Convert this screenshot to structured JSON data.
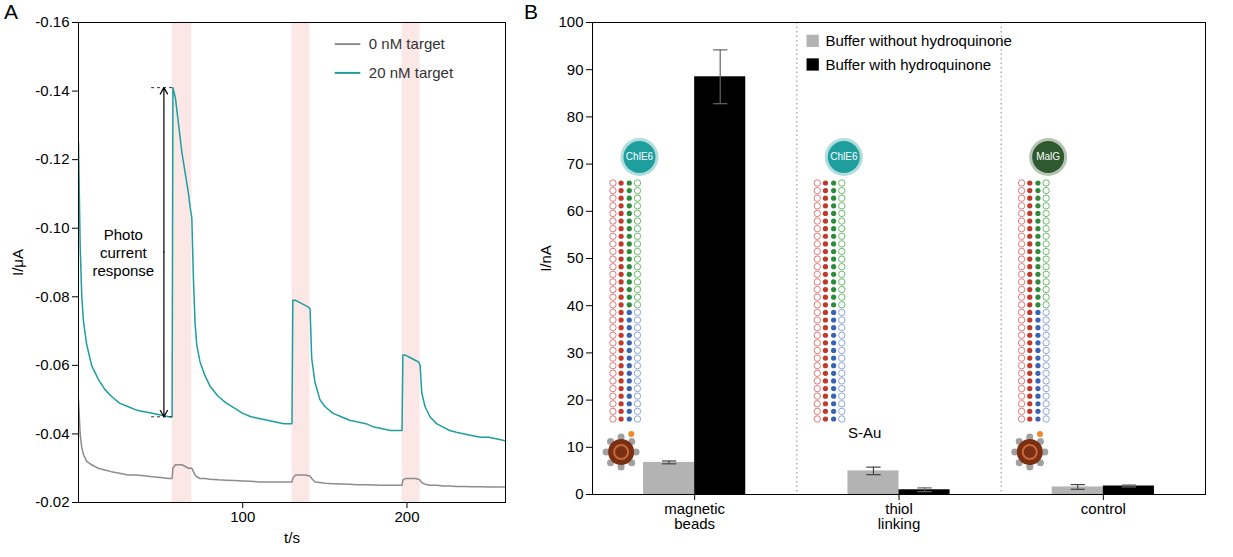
{
  "chart_data": [
    {
      "panel": "A",
      "type": "line",
      "x_label": "t/s",
      "y_label": "I/μA",
      "x": [
        0,
        1,
        2,
        3,
        5,
        8,
        12,
        16,
        20,
        25,
        30,
        35,
        40,
        45,
        50,
        55,
        57,
        57.5,
        59,
        61,
        63,
        65,
        67,
        68,
        69,
        70,
        71,
        72,
        74,
        77,
        80,
        85,
        90,
        95,
        100,
        105,
        110,
        115,
        120,
        125,
        129,
        130,
        130.5,
        132,
        134,
        136,
        138,
        140,
        141,
        142,
        144,
        147,
        150,
        155,
        160,
        165,
        170,
        175,
        180,
        185,
        190,
        195,
        196,
        197,
        197.5,
        199,
        201,
        203,
        205,
        207,
        208,
        209,
        211,
        214,
        218,
        222,
        226,
        230,
        235,
        240,
        245,
        250,
        255,
        260
      ],
      "series": [
        {
          "name": "0 nM target",
          "color": "#8c8c8c",
          "values": [
            -0.05,
            -0.04,
            -0.036,
            -0.034,
            -0.032,
            -0.031,
            -0.03,
            -0.0295,
            -0.029,
            -0.0285,
            -0.028,
            -0.028,
            -0.0278,
            -0.0275,
            -0.0273,
            -0.027,
            -0.027,
            -0.03,
            -0.031,
            -0.031,
            -0.031,
            -0.0305,
            -0.03,
            -0.03,
            -0.03,
            -0.029,
            -0.028,
            -0.0275,
            -0.027,
            -0.027,
            -0.0268,
            -0.0266,
            -0.0265,
            -0.0264,
            -0.0263,
            -0.0262,
            -0.026,
            -0.026,
            -0.026,
            -0.026,
            -0.026,
            -0.026,
            -0.027,
            -0.028,
            -0.028,
            -0.028,
            -0.028,
            -0.0278,
            -0.0277,
            -0.027,
            -0.026,
            -0.0258,
            -0.0256,
            -0.0255,
            -0.0254,
            -0.0253,
            -0.0252,
            -0.0252,
            -0.0251,
            -0.025,
            -0.025,
            -0.025,
            -0.025,
            -0.025,
            -0.0265,
            -0.027,
            -0.027,
            -0.027,
            -0.027,
            -0.0268,
            -0.0265,
            -0.0258,
            -0.0253,
            -0.025,
            -0.025,
            -0.0248,
            -0.0248,
            -0.0247,
            -0.0247,
            -0.0246,
            -0.0246,
            -0.0245,
            -0.0245,
            -0.0245
          ]
        },
        {
          "name": "20 nM target",
          "color": "#1f9e9e",
          "values": [
            -0.125,
            -0.095,
            -0.08,
            -0.073,
            -0.066,
            -0.06,
            -0.056,
            -0.053,
            -0.051,
            -0.049,
            -0.048,
            -0.047,
            -0.0465,
            -0.046,
            -0.0455,
            -0.045,
            -0.045,
            -0.141,
            -0.138,
            -0.13,
            -0.122,
            -0.116,
            -0.11,
            -0.106,
            -0.103,
            -0.085,
            -0.072,
            -0.066,
            -0.061,
            -0.057,
            -0.054,
            -0.051,
            -0.049,
            -0.0475,
            -0.046,
            -0.045,
            -0.0445,
            -0.044,
            -0.0435,
            -0.043,
            -0.043,
            -0.043,
            -0.079,
            -0.079,
            -0.0785,
            -0.078,
            -0.0775,
            -0.077,
            -0.0765,
            -0.062,
            -0.055,
            -0.05,
            -0.048,
            -0.046,
            -0.045,
            -0.044,
            -0.0435,
            -0.043,
            -0.042,
            -0.0415,
            -0.041,
            -0.041,
            -0.041,
            -0.041,
            -0.063,
            -0.063,
            -0.0625,
            -0.062,
            -0.0615,
            -0.061,
            -0.06,
            -0.052,
            -0.048,
            -0.045,
            -0.043,
            -0.042,
            -0.041,
            -0.0405,
            -0.04,
            -0.0395,
            -0.039,
            -0.039,
            -0.0385,
            -0.038
          ]
        }
      ],
      "xlim": [
        0,
        260
      ],
      "xticks": [
        100,
        200
      ],
      "ylim": [
        -0.02,
        -0.16
      ],
      "yticks": [
        -0.16,
        -0.14,
        -0.12,
        {
          "value": -0.1,
          "label": "-0.10"
        },
        -0.08,
        -0.06,
        -0.04,
        -0.02
      ],
      "light_intervals": [
        [
          57,
          69
        ],
        [
          130,
          141
        ],
        [
          197,
          208
        ]
      ],
      "annotation": {
        "text": "Photo current response",
        "x": 52,
        "y": [
          -0.045,
          -0.141
        ]
      },
      "legend": "top-right",
      "grid": false
    },
    {
      "panel": "B",
      "type": "bar",
      "y_label": "I/nA",
      "categories": [
        "magnetic beads",
        "thiol linking",
        "control"
      ],
      "series": [
        {
          "name": "Buffer without hydroquinone",
          "color": "#b3b3b3",
          "values": [
            6.8,
            5.0,
            1.6
          ],
          "errors": [
            0.3,
            0.8,
            0.5
          ]
        },
        {
          "name": "Buffer with hydroquinone",
          "color": "#000000",
          "values": [
            88.5,
            1.0,
            1.8
          ],
          "errors": [
            5.7,
            0.4,
            0.2
          ]
        }
      ],
      "ylim": [
        0,
        100
      ],
      "yticks": [
        0,
        10,
        20,
        30,
        40,
        50,
        60,
        70,
        80,
        90,
        100
      ],
      "probes": [
        {
          "category": "magnetic beads",
          "label": "ChlE6",
          "color": "#1f9e9e"
        },
        {
          "category": "thiol linking",
          "label": "ChlE6",
          "color": "#1f9e9e"
        },
        {
          "category": "control",
          "label": "MalG",
          "color": "#2f5a2f"
        }
      ],
      "annotations": [
        {
          "category": "thiol linking",
          "text": "S-Au"
        }
      ],
      "legend": "top-right",
      "grid": false
    }
  ]
}
